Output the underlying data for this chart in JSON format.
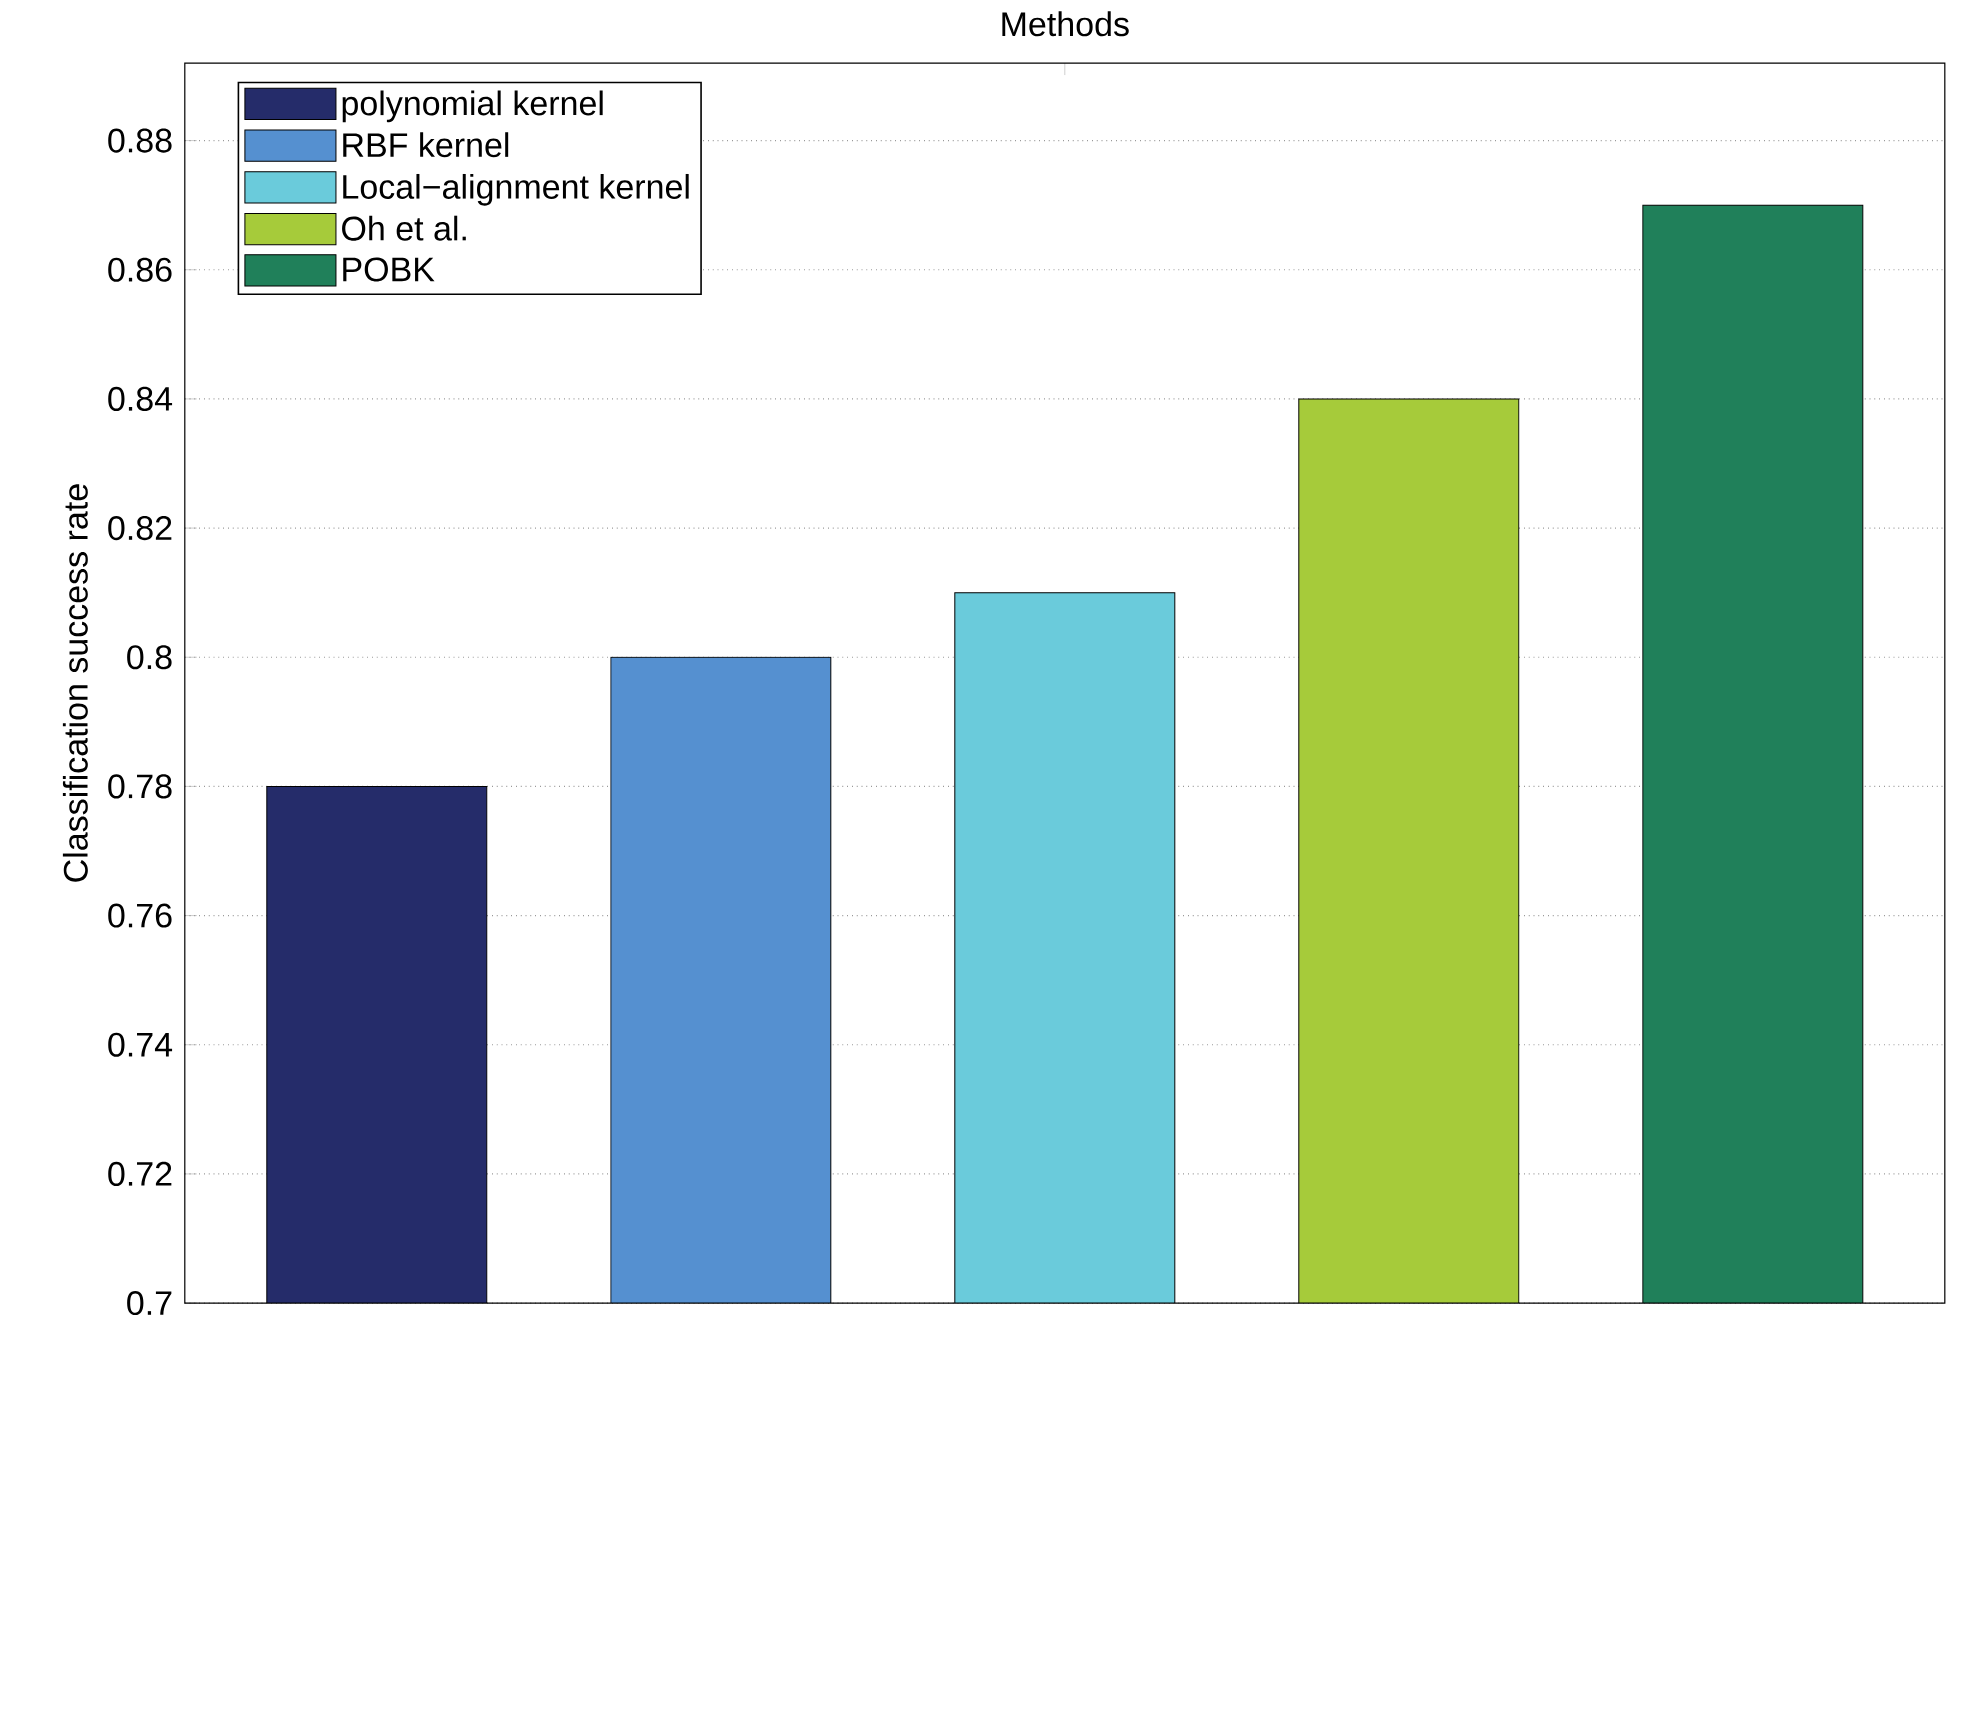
{
  "chart_data": {
    "type": "bar",
    "xlabel": "Methods",
    "ylabel": "Classification success rate",
    "categories": [
      null
    ],
    "series": [
      {
        "name": "polynomial kernel",
        "color": "#252c6a",
        "values": [
          0.78
        ]
      },
      {
        "name": "RBF kernel",
        "color": "#5590d0",
        "values": [
          0.8
        ]
      },
      {
        "name": "Local−alignment kernel",
        "color": "#6acbdb",
        "values": [
          0.81
        ]
      },
      {
        "name": "Oh et al.",
        "color": "#a6cb3a",
        "values": [
          0.84
        ]
      },
      {
        "name": "POBK",
        "color": "#20805a",
        "values": [
          0.87
        ]
      }
    ],
    "ylim": [
      0.7,
      0.892
    ],
    "yticks": [
      0.7,
      0.72,
      0.74,
      0.76,
      0.78,
      0.8,
      0.82,
      0.84,
      0.86,
      0.88
    ],
    "grid": "y",
    "legend": "top left"
  }
}
